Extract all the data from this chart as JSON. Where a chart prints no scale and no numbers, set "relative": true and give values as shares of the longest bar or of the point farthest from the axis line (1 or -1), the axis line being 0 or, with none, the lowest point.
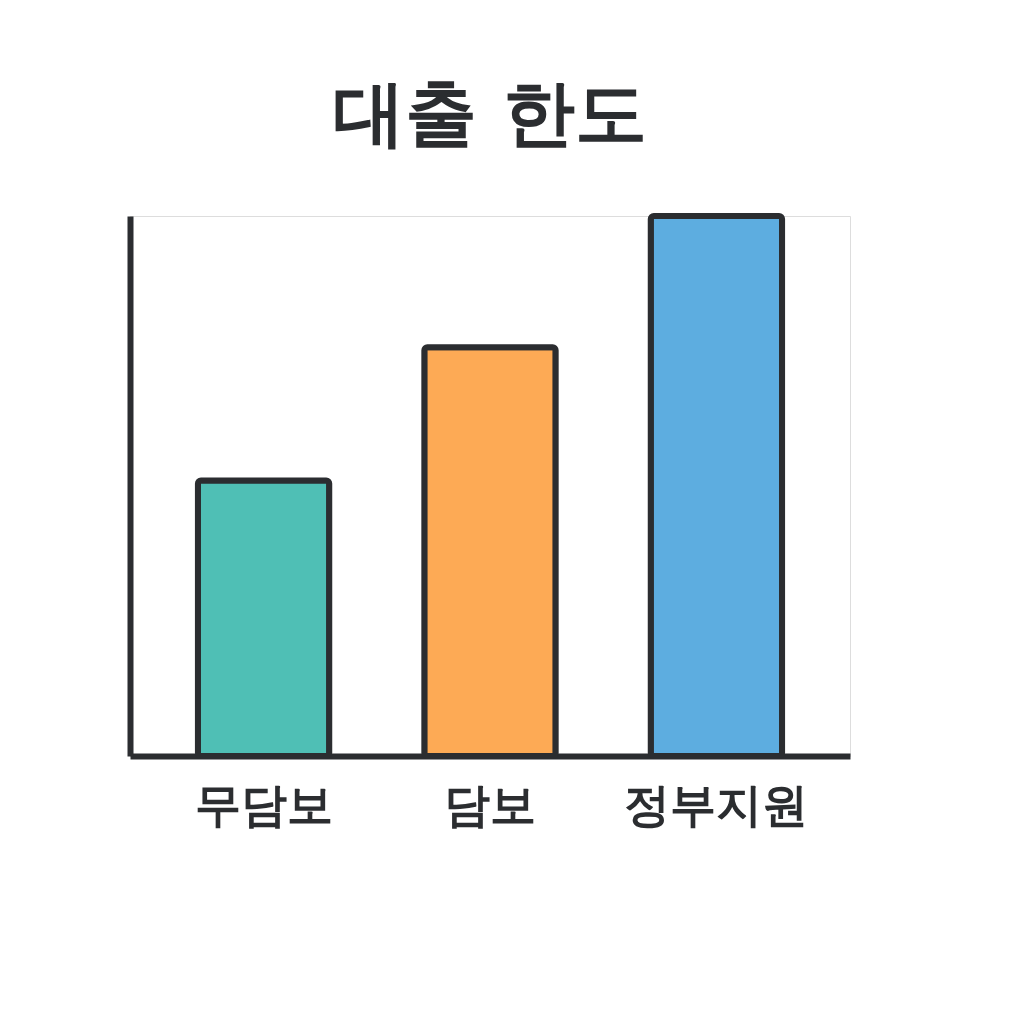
{
  "chart_data": {
    "type": "bar",
    "title": "대출 한도",
    "relative": true,
    "categories": [
      "무담보",
      "담보",
      "정부지원"
    ],
    "values": [
      0.51,
      0.757,
      1
    ],
    "colors": [
      "#4fbfb5",
      "#fdaa55",
      "#5dade0"
    ],
    "grid": false,
    "legend": false
  }
}
